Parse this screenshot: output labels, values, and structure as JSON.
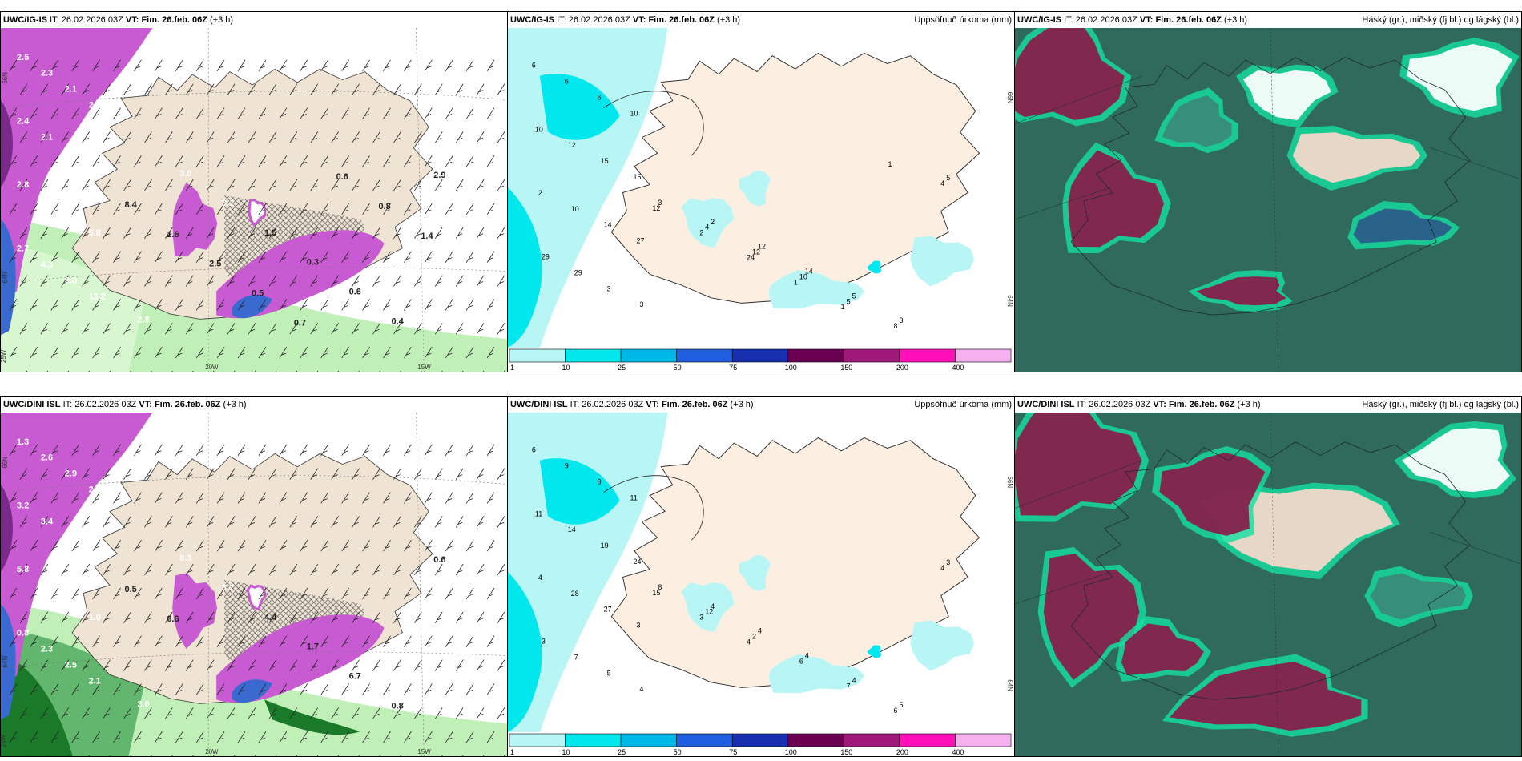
{
  "panels": {
    "r1c1": {
      "model": "UWC/IG-IS",
      "it_label": "IT:",
      "it": "26.02.2026 03Z",
      "vt_label": "VT: Fim. 26.feb. 06Z",
      "offset": "(+3 h)",
      "title": ""
    },
    "r1c2": {
      "model": "UWC/IG-IS",
      "it_label": "IT:",
      "it": "26.02.2026 03Z",
      "vt_label": "VT: Fim. 26.feb. 06Z",
      "offset": "(+3 h)",
      "title": "Uppsöfnuð úrkoma (mm)"
    },
    "r1c3": {
      "model": "UWC/IG-IS",
      "it_label": "IT:",
      "it": "26.02.2026 03Z",
      "vt_label": "VT: Fim. 26.feb. 06Z",
      "offset": "(+3 h)",
      "title": "Háský (gr.), miðský (fj.bl.) og lágský (bl.)"
    },
    "r2c1": {
      "model": "UWC/DINI ISL",
      "it_label": "IT:",
      "it": "26.02.2026 03Z",
      "vt_label": "VT: Fim. 26.feb. 06Z",
      "offset": "(+3 h)",
      "title": ""
    },
    "r2c2": {
      "model": "UWC/DINI ISL",
      "it_label": "IT:",
      "it": "26.02.2026 03Z",
      "vt_label": "VT: Fim. 26.feb. 06Z",
      "offset": "(+3 h)",
      "title": "Uppsöfnuð úrkoma (mm)"
    },
    "r2c3": {
      "model": "UWC/DINI ISL",
      "it_label": "IT:",
      "it": "26.02.2026 03Z",
      "vt_label": "VT: Fim. 26.feb. 06Z",
      "offset": "(+3 h)",
      "title": "Háský (gr.), miðský (fj.bl.) og lágský (bl.)"
    }
  },
  "axis_labels": {
    "lat66": "66N",
    "lat64": "64N",
    "lon25": "25W",
    "lon20": "20W",
    "lon15": "15W"
  },
  "precip_legend": {
    "ticks": [
      "1",
      "10",
      "25",
      "50",
      "75",
      "100",
      "150",
      "200",
      "400"
    ],
    "colors": [
      "#b8f6f6",
      "#00e8ee",
      "#00b8e8",
      "#2060e0",
      "#1830b0",
      "#6a0050",
      "#a0187a",
      "#ff10b8",
      "#f6b0f0"
    ]
  },
  "precip_values_top": [
    "6",
    "6",
    "6",
    "10",
    "10",
    "12",
    "15",
    "15",
    "2",
    "10",
    "14",
    "27",
    "29",
    "29",
    "3",
    "3",
    "2",
    "12",
    "14",
    "5",
    "3",
    "5",
    "3",
    "4",
    "12",
    "10",
    "5",
    "8",
    "4",
    "12",
    "2",
    "24",
    "1",
    "1",
    "1"
  ],
  "precip_values_bottom": [
    "6",
    "9",
    "8",
    "11",
    "11",
    "14",
    "19",
    "24",
    "4",
    "28",
    "27",
    "3",
    "3",
    "7",
    "5",
    "4",
    "4",
    "4",
    "4",
    "4",
    "5",
    "3",
    "8",
    "12",
    "2",
    "6",
    "7",
    "6",
    "4",
    "15",
    "3",
    "4"
  ],
  "pressure_values_top": [
    "2.5",
    "2.3",
    "2.1",
    "2.2",
    "2.4",
    "2.1",
    "2.9",
    "3.5",
    "2.8",
    "4.8",
    "5.0",
    "5.8",
    "2.7",
    "4.3",
    "9.8",
    "13.2",
    "16.2",
    "2.8",
    "3.0",
    "3.1",
    "1.5",
    "0.3",
    "0.6",
    "0.4",
    "2.9",
    "8.4",
    "1.6",
    "2.5",
    "0.5",
    "0.7",
    "0.6",
    "0.8",
    "1.4"
  ],
  "pressure_values_bottom": [
    "1.3",
    "2.6",
    "2.9",
    "2.5",
    "3.2",
    "3.4",
    "4.7",
    "2.1",
    "5.8",
    "2.3",
    "2.9",
    "1.0",
    "0.8",
    "2.3",
    "2.5",
    "2.1",
    "4.2",
    "3.0",
    "8.3",
    "3.7",
    "4.4",
    "1.7",
    "6.7",
    "0.8",
    "0.6",
    "0.5",
    "0.6"
  ],
  "colors": {
    "land": "#efe3d4",
    "land_light": "#fcefe2",
    "snow_purple": "#c85ad2",
    "rain_green": "#c0f0b8",
    "rain_dark": "#1a7a2a",
    "blue": "#3a6ad0",
    "cloud_bg": "#2f6a5c",
    "cloud_edge": "#14e0a0",
    "cloud_red": "#8a1a4a",
    "cloud_pink": "#f8d8cc"
  }
}
